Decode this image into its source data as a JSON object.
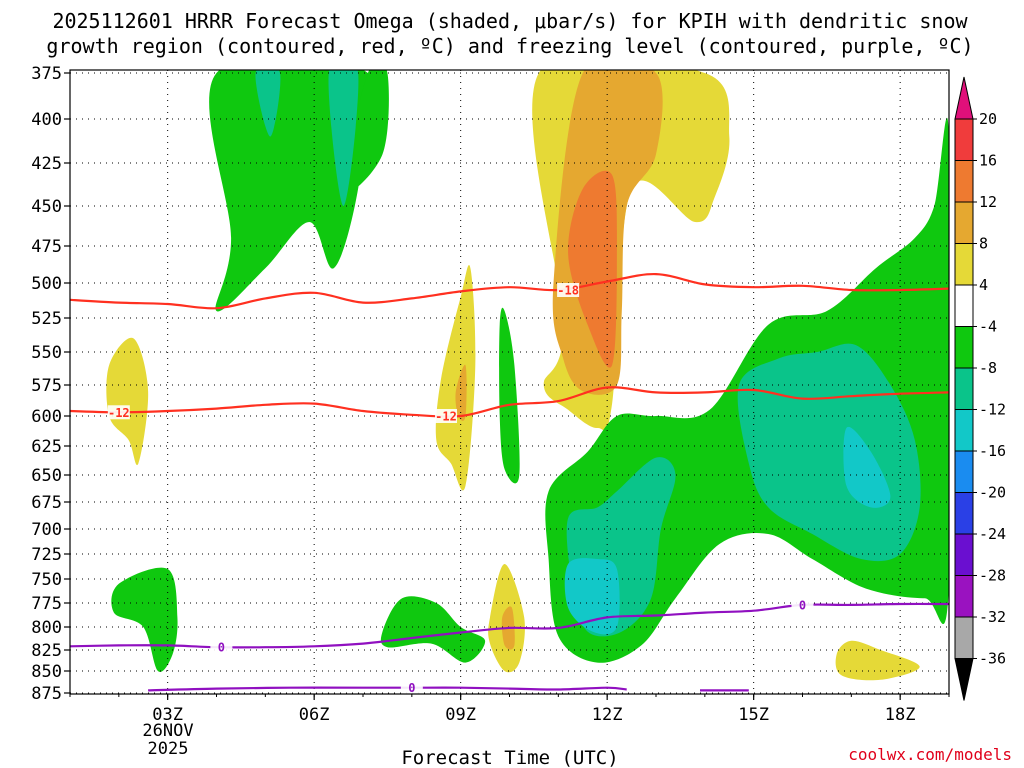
{
  "title_line1": "2025112601 HRRR Forecast Omega (shaded, μbar/s) for KPIH with dendritic snow",
  "title_line2": "growth region (contoured, red, ºC) and freezing level (contoured, purple, ºC)",
  "xlabel": "Forecast Time (UTC)",
  "credit": "coolwx.com/models",
  "date_label_day": "26NOV",
  "date_label_year": "2025",
  "chart_data": {
    "type": "heatmap",
    "title": "2025112601 HRRR Forecast Omega (shaded, μbar/s) for KPIH with dendritic snow growth region (contoured, red, ºC) and freezing level (contoured, purple, ºC)",
    "xlabel": "Forecast Time (UTC)",
    "ylabel": "",
    "x_range_hours": [
      1,
      19
    ],
    "x_tick_hours": [
      3,
      6,
      9,
      12,
      15,
      18
    ],
    "x_ticks": [
      "03Z",
      "06Z",
      "09Z",
      "12Z",
      "15Z",
      "18Z"
    ],
    "y_ticks_mb": [
      375,
      400,
      425,
      450,
      475,
      500,
      525,
      550,
      575,
      600,
      625,
      650,
      675,
      700,
      725,
      750,
      775,
      800,
      825,
      850,
      875
    ],
    "y_range_mb": [
      375,
      880
    ],
    "colorbar": {
      "unit": "μbar/s",
      "labels": [
        "20",
        "16",
        "12",
        "8",
        "4",
        "-4",
        "-8",
        "-12",
        "-16",
        "-20",
        "-24",
        "-28",
        "-32",
        "-36"
      ],
      "label_values": [
        20,
        16,
        12,
        8,
        4,
        -4,
        -8,
        -12,
        -16,
        -20,
        -24,
        -28,
        -32,
        -36
      ],
      "bins": [
        {
          "range": [
            20,
            null
          ],
          "color": "#e0107a"
        },
        {
          "range": [
            16,
            20
          ],
          "color": "#f03c3c"
        },
        {
          "range": [
            12,
            16
          ],
          "color": "#ee7a30"
        },
        {
          "range": [
            8,
            12
          ],
          "color": "#e5a830"
        },
        {
          "range": [
            4,
            8
          ],
          "color": "#e5d937"
        },
        {
          "range": [
            -4,
            4
          ],
          "color": "#ffffff"
        },
        {
          "range": [
            -8,
            -4
          ],
          "color": "#0fc80f"
        },
        {
          "range": [
            -12,
            -8
          ],
          "color": "#0ac48a"
        },
        {
          "range": [
            -16,
            -12
          ],
          "color": "#12c8c8"
        },
        {
          "range": [
            -20,
            -16
          ],
          "color": "#1a8cf0"
        },
        {
          "range": [
            -24,
            -20
          ],
          "color": "#2a40e6"
        },
        {
          "range": [
            -28,
            -24
          ],
          "color": "#6a0fd0"
        },
        {
          "range": [
            -32,
            -28
          ],
          "color": "#9a12c0"
        },
        {
          "range": [
            -36,
            -32
          ],
          "color": "#a8a8a8"
        },
        {
          "range": [
            null,
            -36
          ],
          "color": "#000000"
        }
      ]
    },
    "omega_regions": [
      {
        "level": "-4",
        "color": "#0fc80f",
        "pts": [
          [
            4,
            375
          ],
          [
            4.3,
            470
          ],
          [
            4,
            520
          ],
          [
            5,
            490
          ],
          [
            5.9,
            460
          ],
          [
            6.4,
            490
          ],
          [
            6.9,
            440
          ],
          [
            7.1,
            375
          ]
        ]
      },
      {
        "level": "-4",
        "color": "#0fc80f",
        "pts": [
          [
            7.1,
            375
          ],
          [
            6.6,
            440
          ],
          [
            7.4,
            420
          ],
          [
            7.5,
            375
          ]
        ]
      },
      {
        "level": "-8",
        "color": "#0ac48a",
        "pts": [
          [
            4.8,
            375
          ],
          [
            5.1,
            410
          ],
          [
            5.3,
            375
          ]
        ]
      },
      {
        "level": "-8",
        "color": "#0ac48a",
        "pts": [
          [
            6.3,
            375
          ],
          [
            6.6,
            450
          ],
          [
            6.9,
            375
          ]
        ]
      },
      {
        "level": "4",
        "color": "#e5d937",
        "pts": [
          [
            1.8,
            560
          ],
          [
            2.3,
            540
          ],
          [
            2.6,
            580
          ],
          [
            2.4,
            640
          ],
          [
            2.2,
            620
          ],
          [
            1.8,
            600
          ]
        ]
      },
      {
        "level": "4",
        "color": "#e5d937",
        "pts": [
          [
            8.6,
            570
          ],
          [
            9,
            510
          ],
          [
            9.2,
            490
          ],
          [
            9.3,
            560
          ],
          [
            9.1,
            660
          ],
          [
            8.8,
            640
          ],
          [
            8.5,
            620
          ]
        ]
      },
      {
        "level": "8",
        "color": "#e5a830",
        "pts": [
          [
            8.9,
            580
          ],
          [
            9.1,
            560
          ],
          [
            9.1,
            600
          ],
          [
            8.95,
            600
          ]
        ]
      },
      {
        "level": "4",
        "color": "#e5d937",
        "pts": [
          [
            10.6,
            375
          ],
          [
            11.1,
            530
          ],
          [
            10.7,
            575
          ],
          [
            11.2,
            595
          ],
          [
            11.8,
            610
          ],
          [
            12.1,
            590
          ],
          [
            12.5,
            440
          ],
          [
            13.8,
            460
          ],
          [
            14.2,
            445
          ],
          [
            14.5,
            410
          ],
          [
            14,
            375
          ]
        ]
      },
      {
        "level": "8",
        "color": "#e5a830",
        "pts": [
          [
            11.5,
            375
          ],
          [
            10.9,
            500
          ],
          [
            11.1,
            555
          ],
          [
            11.5,
            580
          ],
          [
            12.2,
            575
          ],
          [
            12.3,
            520
          ],
          [
            12.4,
            450
          ],
          [
            13,
            420
          ],
          [
            13,
            375
          ]
        ]
      },
      {
        "level": "12",
        "color": "#ee7a30",
        "pts": [
          [
            11.2,
            480
          ],
          [
            11.5,
            440
          ],
          [
            12.1,
            432
          ],
          [
            12.2,
            480
          ],
          [
            12.1,
            560
          ],
          [
            11.6,
            530
          ]
        ]
      },
      {
        "level": "-4",
        "color": "#0fc80f",
        "pts": [
          [
            9.8,
            530
          ],
          [
            9.9,
            520
          ],
          [
            10.1,
            560
          ],
          [
            10.2,
            650
          ],
          [
            9.9,
            645
          ],
          [
            9.8,
            600
          ]
        ]
      },
      {
        "level": "-4",
        "color": "#0fc80f",
        "pts": [
          [
            10.8,
            665
          ],
          [
            11.6,
            630
          ],
          [
            12.2,
            600
          ],
          [
            13,
            600
          ],
          [
            14.1,
            595
          ],
          [
            15.3,
            530
          ],
          [
            16.5,
            520
          ],
          [
            17.5,
            490
          ],
          [
            18.3,
            470
          ],
          [
            18.7,
            450
          ],
          [
            19,
            410
          ],
          [
            19,
            758
          ],
          [
            18.5,
            770
          ],
          [
            17.3,
            760
          ],
          [
            16.2,
            730
          ],
          [
            15.3,
            705
          ],
          [
            14.3,
            715
          ],
          [
            13.4,
            770
          ],
          [
            12.7,
            820
          ],
          [
            11.8,
            840
          ],
          [
            11,
            810
          ],
          [
            10.8,
            730
          ]
        ]
      },
      {
        "level": "-8",
        "color": "#0ac48a",
        "pts": [
          [
            11.2,
            690
          ],
          [
            11.8,
            680
          ],
          [
            12.2,
            665
          ],
          [
            13,
            635
          ],
          [
            13.4,
            650
          ],
          [
            13.1,
            700
          ],
          [
            12.9,
            770
          ],
          [
            12.3,
            805
          ],
          [
            11.6,
            805
          ],
          [
            11.3,
            760
          ]
        ]
      },
      {
        "level": "-12",
        "color": "#12c8c8",
        "pts": [
          [
            11.2,
            735
          ],
          [
            11.8,
            730
          ],
          [
            12.2,
            740
          ],
          [
            12.2,
            800
          ],
          [
            11.7,
            805
          ],
          [
            11.2,
            780
          ]
        ]
      },
      {
        "level": "-8",
        "color": "#0ac48a",
        "pts": [
          [
            14.7,
            575
          ],
          [
            15.5,
            555
          ],
          [
            16.3,
            550
          ],
          [
            17.1,
            545
          ],
          [
            17.8,
            575
          ],
          [
            18.3,
            620
          ],
          [
            18.4,
            680
          ],
          [
            18,
            725
          ],
          [
            17.2,
            730
          ],
          [
            16.2,
            705
          ],
          [
            15.3,
            680
          ],
          [
            14.9,
            640
          ]
        ]
      },
      {
        "level": "-12",
        "color": "#12c8c8",
        "pts": [
          [
            16.9,
            610
          ],
          [
            17.4,
            630
          ],
          [
            17.8,
            670
          ],
          [
            17.4,
            680
          ],
          [
            16.9,
            660
          ]
        ]
      },
      {
        "level": "-4",
        "color": "#0fc80f",
        "pts": [
          [
            2,
            755
          ],
          [
            3,
            740
          ],
          [
            3.2,
            790
          ],
          [
            3.1,
            830
          ],
          [
            2.8,
            850
          ],
          [
            2.5,
            800
          ],
          [
            1.9,
            785
          ]
        ]
      },
      {
        "level": "-4",
        "color": "#0fc80f",
        "pts": [
          [
            7.4,
            805
          ],
          [
            7.8,
            770
          ],
          [
            8.5,
            775
          ],
          [
            9,
            800
          ],
          [
            9.5,
            815
          ],
          [
            9.1,
            840
          ],
          [
            8.4,
            818
          ],
          [
            7.5,
            822
          ]
        ]
      },
      {
        "level": "4",
        "color": "#e5d937",
        "pts": [
          [
            9.6,
            790
          ],
          [
            9.9,
            735
          ],
          [
            10.3,
            790
          ],
          [
            10.2,
            840
          ],
          [
            9.9,
            850
          ],
          [
            9.6,
            818
          ]
        ]
      },
      {
        "level": "8",
        "color": "#e5a830",
        "pts": [
          [
            9.85,
            790
          ],
          [
            10.05,
            780
          ],
          [
            10.1,
            820
          ],
          [
            9.9,
            820
          ]
        ]
      },
      {
        "level": "4",
        "color": "#e5d937",
        "pts": [
          [
            16.7,
            830
          ],
          [
            17,
            815
          ],
          [
            17.6,
            825
          ],
          [
            18.4,
            845
          ],
          [
            17.6,
            860
          ],
          [
            16.8,
            855
          ]
        ]
      }
    ],
    "dgz_contours": [
      {
        "label": "-18",
        "color": "#ff3020",
        "pts": [
          [
            1,
            512
          ],
          [
            2,
            514
          ],
          [
            3,
            515
          ],
          [
            4,
            518
          ],
          [
            5,
            511
          ],
          [
            6,
            507
          ],
          [
            7,
            514
          ],
          [
            8,
            511
          ],
          [
            9,
            506
          ],
          [
            10,
            503
          ],
          [
            11,
            505
          ],
          [
            12,
            499
          ],
          [
            13,
            494
          ],
          [
            14,
            501
          ],
          [
            15,
            503
          ],
          [
            16,
            502
          ],
          [
            17,
            505
          ],
          [
            18,
            505
          ],
          [
            19,
            504
          ]
        ],
        "label_at": [
          11.2,
          505
        ]
      },
      {
        "label": "-12",
        "color": "#ff3020",
        "pts": [
          [
            1,
            596
          ],
          [
            2,
            597
          ],
          [
            3,
            596
          ],
          [
            4,
            594
          ],
          [
            5,
            591
          ],
          [
            6,
            590
          ],
          [
            7,
            596
          ],
          [
            8,
            599
          ],
          [
            9,
            600
          ],
          [
            10,
            591
          ],
          [
            11,
            588
          ],
          [
            12,
            577
          ],
          [
            13,
            581
          ],
          [
            14,
            581
          ],
          [
            15,
            579
          ],
          [
            16,
            586
          ],
          [
            17,
            584
          ],
          [
            18,
            582
          ],
          [
            19,
            581
          ]
        ],
        "labels_at": [
          [
            2,
            597
          ],
          [
            8.7,
            600
          ]
        ]
      }
    ],
    "freezing_level_contours": [
      {
        "label": "0",
        "color": "#9010c0",
        "pts": [
          [
            1,
            821
          ],
          [
            2,
            820
          ],
          [
            3,
            820
          ],
          [
            4,
            822
          ],
          [
            5,
            822
          ],
          [
            6,
            821
          ],
          [
            7,
            818
          ],
          [
            8,
            812
          ],
          [
            9,
            806
          ],
          [
            10,
            801
          ],
          [
            11,
            801
          ],
          [
            12,
            790
          ],
          [
            13,
            788
          ],
          [
            14,
            785
          ],
          [
            15,
            783
          ],
          [
            16,
            777
          ],
          [
            17,
            777
          ],
          [
            18,
            776
          ],
          [
            19,
            776
          ]
        ],
        "labels_at": [
          [
            4.1,
            822
          ],
          [
            16,
            777
          ]
        ]
      },
      {
        "label": "0",
        "color": "#9010c0",
        "pts": [
          [
            2.6,
            872
          ],
          [
            4,
            870
          ],
          [
            5.5,
            869
          ],
          [
            7,
            869
          ],
          [
            8,
            869
          ],
          [
            9,
            869
          ],
          [
            10,
            870
          ],
          [
            11,
            871
          ],
          [
            12,
            869
          ],
          [
            12.4,
            871
          ]
        ],
        "labels_at": [
          [
            8,
            869
          ]
        ]
      },
      {
        "label": "0",
        "color": "#9010c0",
        "pts": [
          [
            13.9,
            872
          ],
          [
            14.9,
            872
          ]
        ],
        "labels_at": []
      }
    ],
    "terrain": {
      "color": "#a0522d",
      "surface_mb": 876
    }
  }
}
